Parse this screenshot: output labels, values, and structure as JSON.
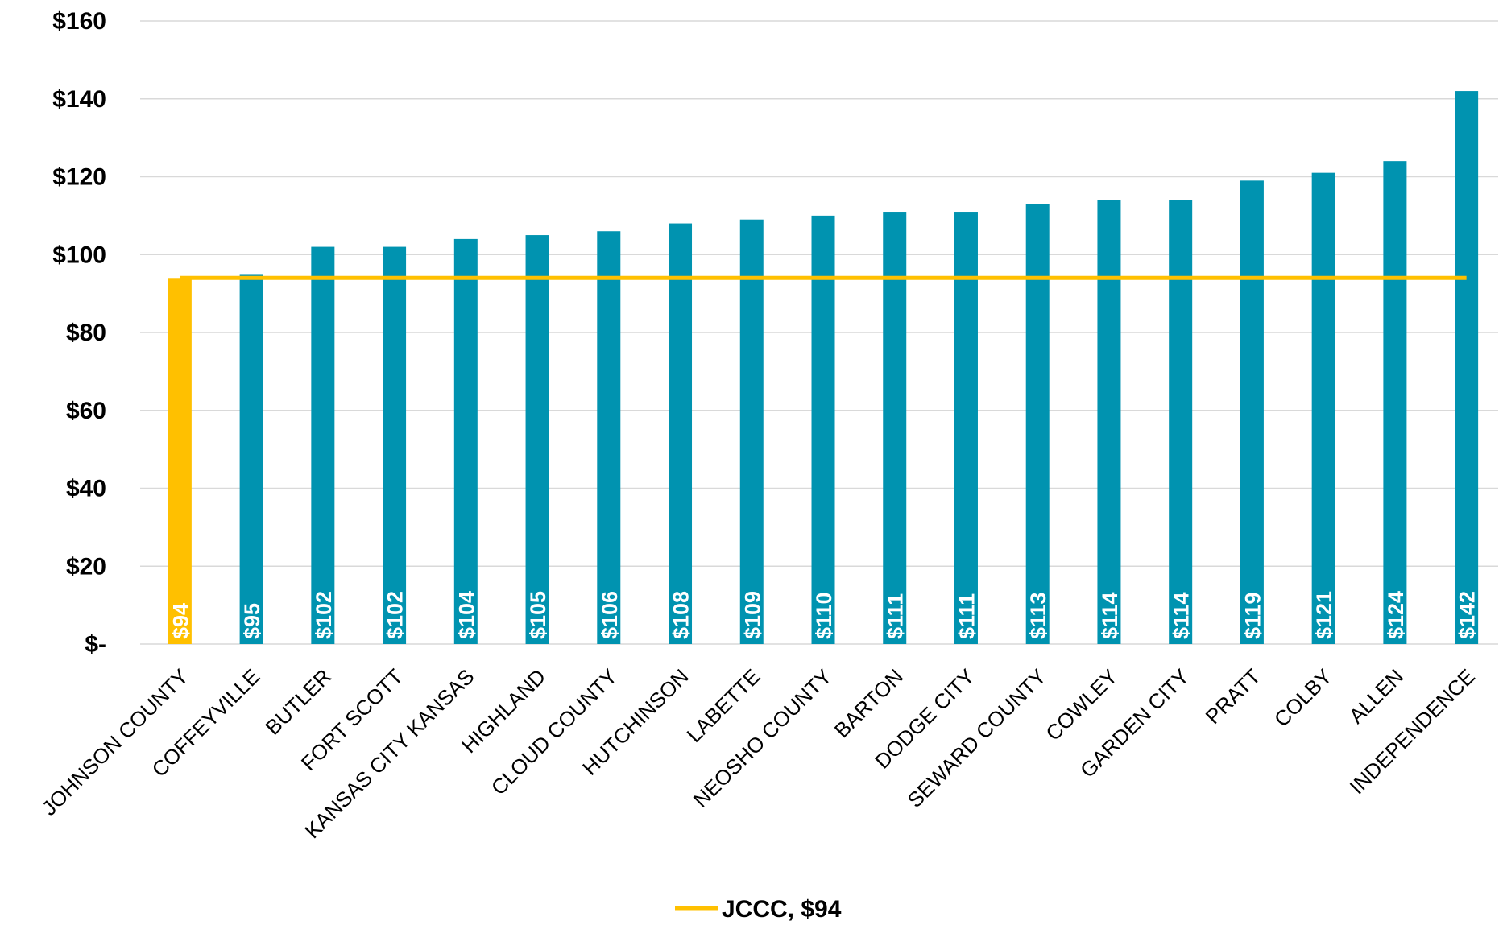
{
  "chart_data": {
    "type": "bar",
    "title": "",
    "xlabel": "",
    "ylabel": "",
    "ylim": [
      0,
      160
    ],
    "y_ticks": [
      0,
      20,
      40,
      60,
      80,
      100,
      120,
      140,
      160
    ],
    "y_tick_labels": [
      "$-",
      "$20",
      "$40",
      "$60",
      "$80",
      "$100",
      "$120",
      "$140",
      "$160"
    ],
    "grid": true,
    "categories": [
      "JOHNSON COUNTY",
      "COFFEYVILLE",
      "BUTLER",
      "FORT SCOTT",
      "KANSAS CITY KANSAS",
      "HIGHLAND",
      "CLOUD COUNTY",
      "HUTCHINSON",
      "LABETTE",
      "NEOSHO COUNTY",
      "BARTON",
      "DODGE CITY",
      "SEWARD COUNTY",
      "COWLEY",
      "GARDEN CITY",
      "PRATT",
      "COLBY",
      "ALLEN",
      "INDEPENDENCE"
    ],
    "values": [
      94,
      95,
      102,
      102,
      104,
      105,
      106,
      108,
      109,
      110,
      111,
      111,
      113,
      114,
      114,
      119,
      121,
      124,
      142
    ],
    "data_labels": [
      "$94",
      "$95",
      "$102",
      "$102",
      "$104",
      "$105",
      "$106",
      "$108",
      "$109",
      "$110",
      "$111",
      "$111",
      "$113",
      "$114",
      "$114",
      "$119",
      "$121",
      "$124",
      "$142"
    ],
    "highlight_category": "JOHNSON COUNTY",
    "reference_line": {
      "name": "JCCC, $94",
      "value": 94
    },
    "legend_position": "bottom",
    "colors": {
      "bar": "#0093b0",
      "highlight": "#ffc000",
      "line": "#ffc000",
      "grid": "#d9d9d9"
    }
  }
}
